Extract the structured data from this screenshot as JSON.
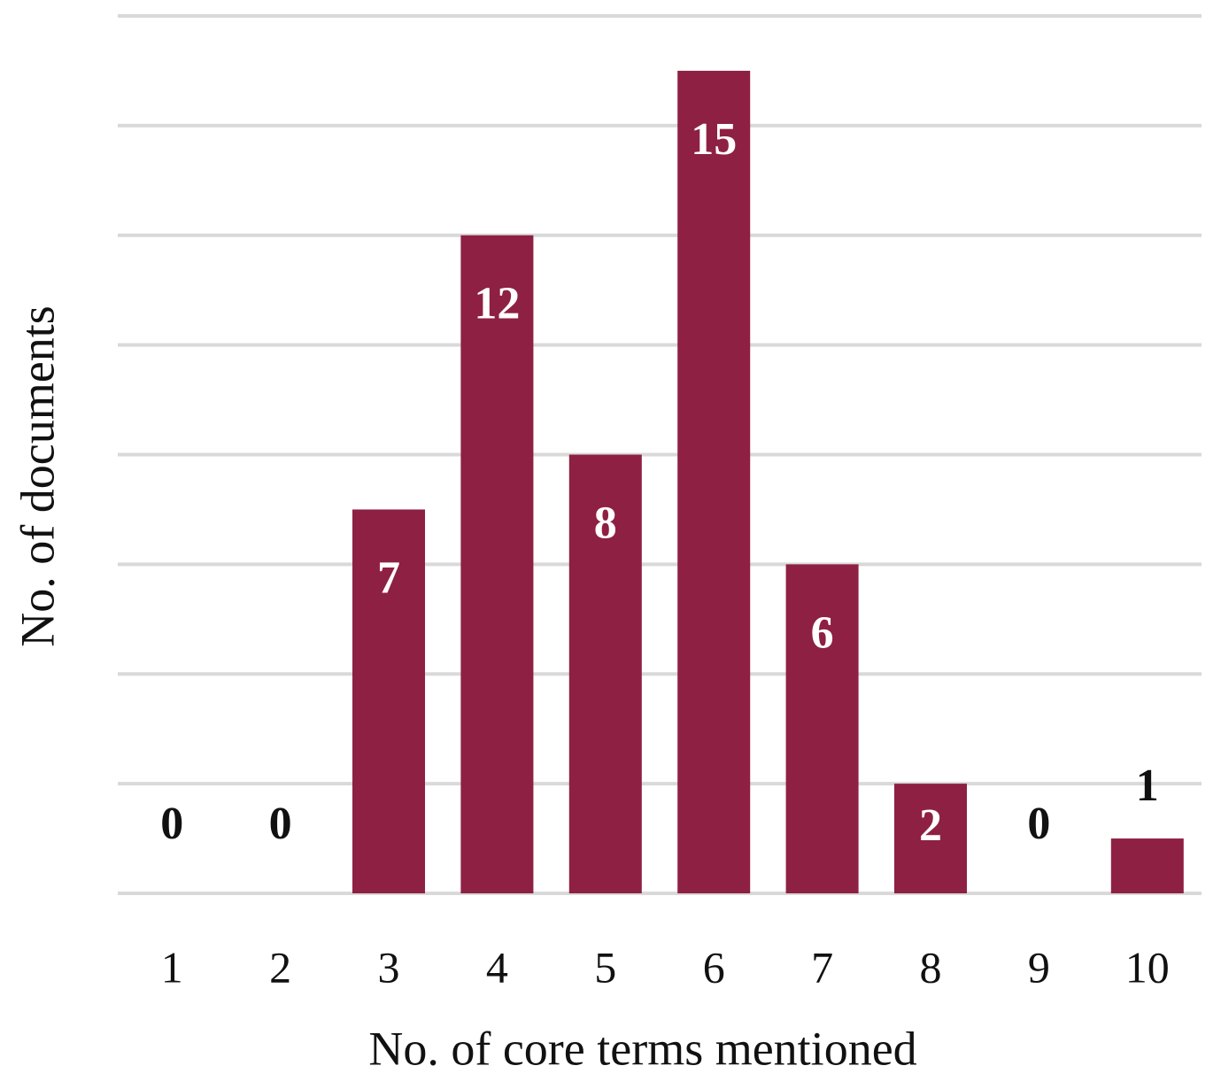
{
  "chart_data": {
    "type": "bar",
    "x_label": "No. of core terms mentioned",
    "y_label": "No. of documents",
    "categories": [
      "1",
      "2",
      "3",
      "4",
      "5",
      "6",
      "7",
      "8",
      "9",
      "10"
    ],
    "values": [
      0,
      0,
      7,
      12,
      8,
      15,
      6,
      2,
      0,
      1
    ],
    "color": "#8e2043",
    "ylim": [
      0,
      16
    ],
    "yticks": [
      0,
      2,
      4,
      6,
      8,
      10,
      12,
      14,
      16
    ],
    "grid": true
  }
}
